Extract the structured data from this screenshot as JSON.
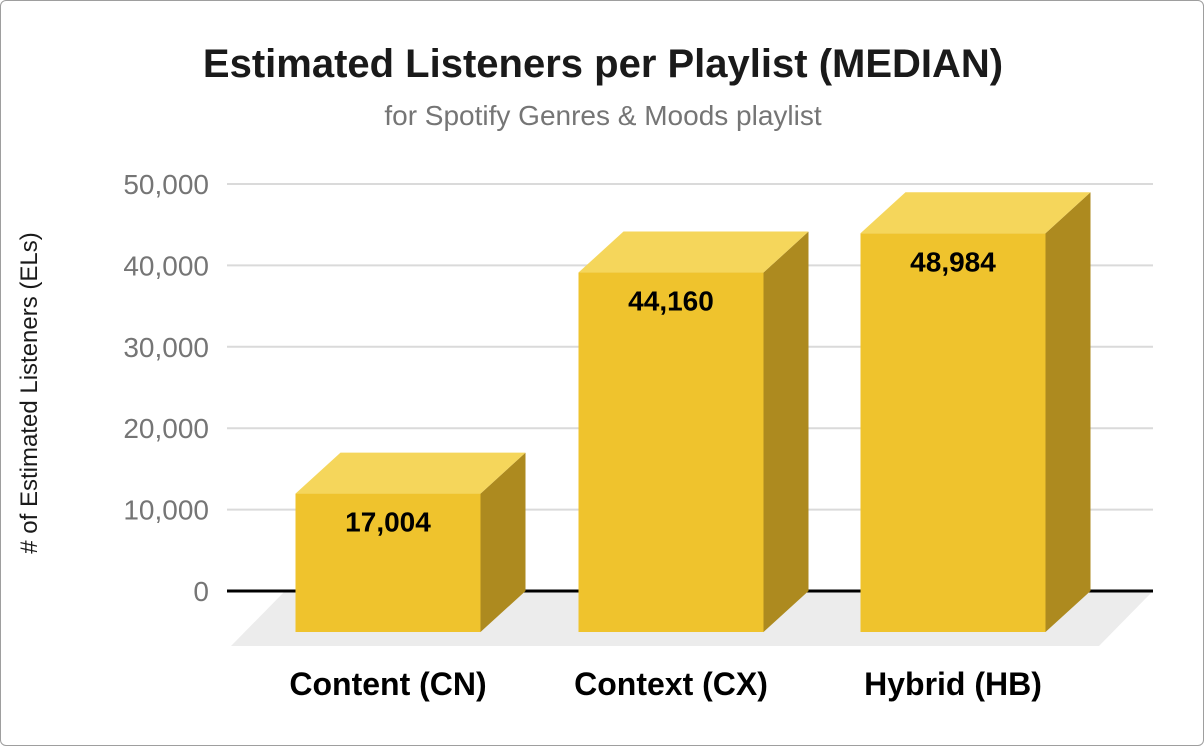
{
  "chart_data": {
    "type": "bar",
    "style": "3d-column",
    "title": "Estimated Listeners per Playlist (MEDIAN)",
    "subtitle": "for Spotify Genres & Moods playlist",
    "xlabel": "",
    "ylabel": "# of Estimated Listeners (ELs)",
    "categories": [
      "Content (CN)",
      "Context (CX)",
      "Hybrid (HB)"
    ],
    "values": [
      17004,
      44160,
      48984
    ],
    "data_labels": [
      "17,004",
      "44,160",
      "48,984"
    ],
    "ylim": [
      0,
      50000
    ],
    "yticks": [
      0,
      10000,
      20000,
      30000,
      40000,
      50000
    ],
    "ytick_labels": [
      "0",
      "10,000",
      "20,000",
      "30,000",
      "40,000",
      "50,000"
    ],
    "grid": true,
    "legend": "none",
    "colors": {
      "bar_front": "#EFC32D",
      "bar_top": "#F5D65B",
      "bar_side": "#AD8A1F",
      "floor": "#ECECEC",
      "gridline": "#DADADA",
      "axis_line": "#000000",
      "tick_text": "#757575",
      "title_text": "#1A1A1A",
      "subtitle_text": "#757575",
      "label_text": "#000000"
    }
  }
}
